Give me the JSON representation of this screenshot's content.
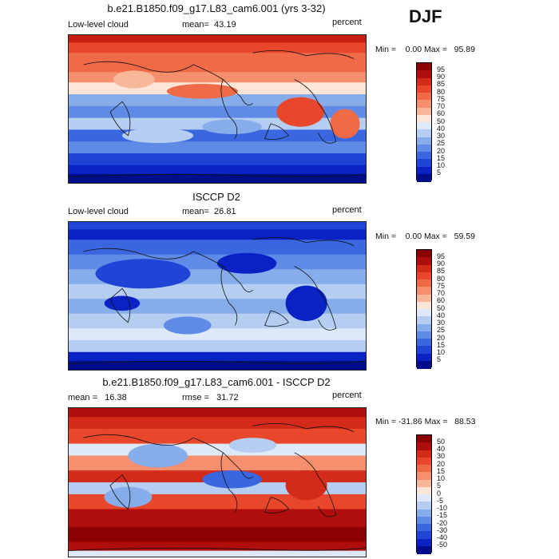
{
  "season": "DJF",
  "panels": [
    {
      "title": "b.e21.B1850.f09_g17.L83_cam6.001 (yrs 3-32)",
      "left_label": "Low-level cloud",
      "center_label": "mean=  43.19",
      "right_label": "percent",
      "minmax": "Min =    0.00 Max =   95.89",
      "colorbar_labels": [
        "95",
        "90",
        "85",
        "80",
        "75",
        "70",
        "60",
        "50",
        "40",
        "30",
        "25",
        "20",
        "15",
        "10",
        "5"
      ],
      "colorbar_colors": [
        "#8b0000",
        "#b00d0d",
        "#d42a1a",
        "#e8472b",
        "#f06a48",
        "#f58f6d",
        "#f9b79a",
        "#fde6d8",
        "#dde8f8",
        "#b4cdf0",
        "#87acea",
        "#5f8ae6",
        "#3a67e0",
        "#1f44d6",
        "#0a22c4",
        "#000d8a"
      ],
      "map_palette": "model"
    },
    {
      "title": "ISCCP D2",
      "left_label": "Low-level cloud",
      "center_label": "mean=  26.81",
      "right_label": "percent",
      "minmax": "Min =    0.00 Max =   59.59",
      "colorbar_labels": [
        "95",
        "90",
        "85",
        "80",
        "75",
        "70",
        "60",
        "50",
        "40",
        "30",
        "25",
        "20",
        "15",
        "10",
        "5"
      ],
      "colorbar_colors": [
        "#8b0000",
        "#b00d0d",
        "#d42a1a",
        "#e8472b",
        "#f06a48",
        "#f58f6d",
        "#f9b79a",
        "#fde6d8",
        "#dde8f8",
        "#b4cdf0",
        "#87acea",
        "#5f8ae6",
        "#3a67e0",
        "#1f44d6",
        "#0a22c4",
        "#000d8a"
      ],
      "map_palette": "obs"
    },
    {
      "title": "b.e21.B1850.f09_g17.L83_cam6.001 - ISCCP D2",
      "left_label": "mean =   16.38",
      "center_label": "rmse =   31.72",
      "right_label": "percent",
      "minmax": "Min = -31.86 Max =   88.53",
      "colorbar_labels": [
        "50",
        "40",
        "30",
        "20",
        "15",
        "10",
        "5",
        "0",
        "-5",
        "-10",
        "-15",
        "-20",
        "-30",
        "-40",
        "-50"
      ],
      "colorbar_colors": [
        "#8b0000",
        "#b00d0d",
        "#d42a1a",
        "#e8472b",
        "#f06a48",
        "#f58f6d",
        "#f9b79a",
        "#fde6d8",
        "#dde8f8",
        "#b4cdf0",
        "#87acea",
        "#5f8ae6",
        "#3a67e0",
        "#1f44d6",
        "#0a22c4",
        "#000d8a"
      ],
      "map_palette": "diff"
    }
  ]
}
